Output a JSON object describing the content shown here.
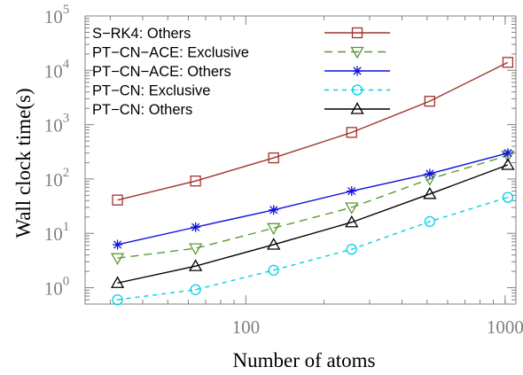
{
  "chart_data": {
    "type": "line",
    "xlabel": "Number of atoms",
    "ylabel": "Wall clock time(s)",
    "xscale": "log",
    "yscale": "log",
    "xlim": [
      24,
      1100
    ],
    "ylim": [
      0.5,
      100000
    ],
    "x_ticks": [
      {
        "value": 100,
        "label": "100"
      },
      {
        "value": 1000,
        "label": "1000"
      }
    ],
    "y_ticks": [
      {
        "value": 1,
        "base": "10",
        "exp": "0"
      },
      {
        "value": 10,
        "base": "10",
        "exp": "1"
      },
      {
        "value": 100,
        "base": "10",
        "exp": "2"
      },
      {
        "value": 1000,
        "base": "10",
        "exp": "3"
      },
      {
        "value": 10000,
        "base": "10",
        "exp": "4"
      },
      {
        "value": 100000,
        "base": "10",
        "exp": "5"
      }
    ],
    "grid": false,
    "legend_position": "top-left",
    "x": [
      32,
      64,
      128,
      256,
      512,
      1024
    ],
    "series": [
      {
        "name": "S−RK4: Others",
        "color": "#a0332a",
        "marker": "square",
        "dash": "solid",
        "values": [
          41,
          92,
          245,
          720,
          2700,
          14000
        ]
      },
      {
        "name": "PT−CN−ACE: Exclusive",
        "color": "#5a9a32",
        "marker": "triangle-down",
        "dash": "dashed",
        "values": [
          3.5,
          5.3,
          12.5,
          30,
          100,
          270
        ]
      },
      {
        "name": "PT−CN−ACE: Others",
        "color": "#1010e0",
        "marker": "asterisk",
        "dash": "solid",
        "values": [
          6.2,
          13,
          27,
          60,
          125,
          300
        ]
      },
      {
        "name": "PT−CN: Exclusive",
        "color": "#00d0e8",
        "marker": "circle",
        "dash": "dotted",
        "values": [
          0.6,
          0.92,
          2.1,
          5.1,
          16.5,
          46
        ]
      },
      {
        "name": "PT−CN: Others",
        "color": "#000000",
        "marker": "triangle-up",
        "dash": "solid",
        "values": [
          1.22,
          2.5,
          6.2,
          16,
          53,
          182
        ]
      }
    ]
  }
}
